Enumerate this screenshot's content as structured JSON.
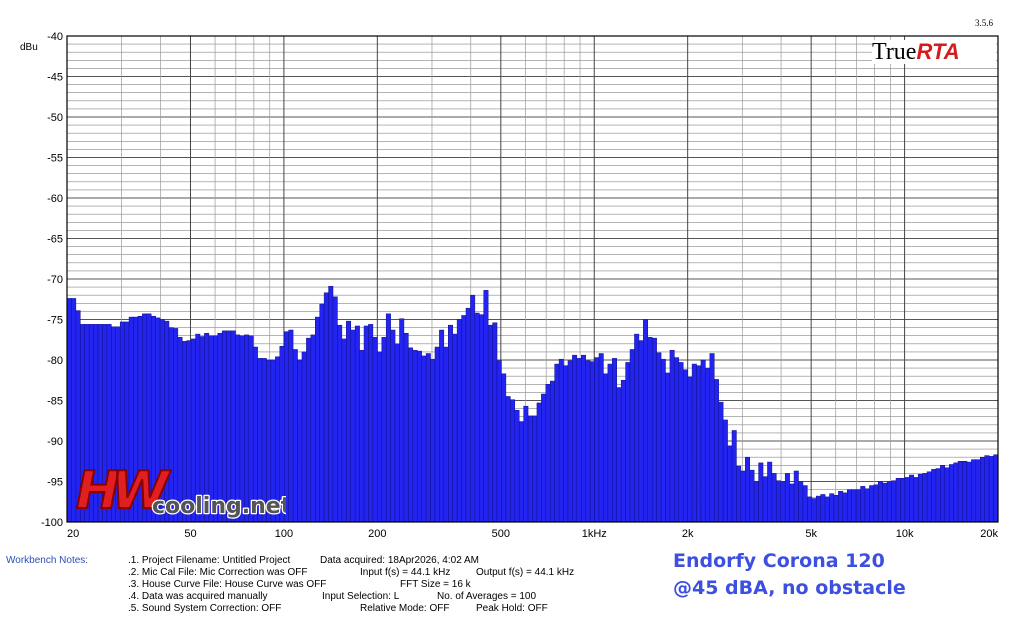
{
  "app": {
    "logo_true": "True",
    "logo_rta": "RTA",
    "version": "3.5.6"
  },
  "watermark": {
    "letters": "HW",
    "text": "cooling.net"
  },
  "caption": {
    "line1": "Endorfy Corona 120",
    "line2": "@45 dBA, no obstacle"
  },
  "notes": {
    "label": "Workbench Notes:",
    "project": ".1. Project Filename: Untitled Project",
    "data_acquired": "Data acquired: 18Apr2026, 4:02 AM",
    "mic_cal": ".2. Mic Cal File: Mic Correction was OFF",
    "input_f": "Input f(s) = 44.1 kHz",
    "output_f": "Output f(s) = 44.1 kHz",
    "house_curve": ".3. House Curve File: House Curve was OFF",
    "fft_size": "FFT Size = 16 k",
    "manual": ".4. Data was acquired manually",
    "input_sel": "Input Selection: L",
    "averages": "No. of Averages = 100",
    "system_corr": ".5. Sound System Correction: OFF",
    "relative": "Relative Mode:  OFF",
    "peak_hold": "Peak Hold: OFF"
  },
  "colors": {
    "bar_fill": "#2424f0",
    "bar_edge": "#10108a",
    "grid": "#000000",
    "caption": "#3c4fe0",
    "logo_red": "#d41c1c"
  },
  "chart_data": {
    "type": "bar",
    "ylabel": "dBu",
    "xscale": "log",
    "xlim": [
      20,
      20000
    ],
    "ylim": [
      -100,
      -40
    ],
    "x_tick_labels": [
      "20",
      "50",
      "100",
      "200",
      "500",
      "1kHz",
      "2k",
      "5k",
      "10k",
      "20k"
    ],
    "x_tick_values": [
      20,
      50,
      100,
      200,
      500,
      1000,
      2000,
      5000,
      10000,
      20000
    ],
    "y_tick_values": [
      -40,
      -45,
      -50,
      -55,
      -60,
      -65,
      -70,
      -75,
      -80,
      -85,
      -90,
      -95,
      -100
    ],
    "grid": "on",
    "bands_per_octave": 24,
    "values": [
      -72.4,
      -72.4,
      -73.9,
      -75.6,
      -75.6,
      -75.6,
      -75.6,
      -75.6,
      -75.6,
      -75.6,
      -75.9,
      -75.9,
      -75.3,
      -75.3,
      -74.7,
      -74.7,
      -74.6,
      -74.3,
      -74.3,
      -74.6,
      -74.8,
      -75.0,
      -75.2,
      -76.0,
      -76.1,
      -77.2,
      -77.7,
      -77.6,
      -77.4,
      -76.8,
      -77.1,
      -76.7,
      -77.0,
      -77.0,
      -76.7,
      -76.4,
      -76.4,
      -76.4,
      -76.9,
      -77.0,
      -76.9,
      -77.0,
      -78.4,
      -79.8,
      -79.8,
      -80.0,
      -80.0,
      -79.6,
      -78.3,
      -76.5,
      -76.3,
      -78.7,
      -80.0,
      -79.0,
      -77.3,
      -76.9,
      -74.7,
      -73.1,
      -71.7,
      -70.9,
      -72.2,
      -75.7,
      -77.4,
      -75.2,
      -76.3,
      -75.8,
      -78.8,
      -75.8,
      -75.6,
      -77.2,
      -79.0,
      -77.2,
      -74.3,
      -76.3,
      -78.0,
      -74.9,
      -76.7,
      -78.5,
      -78.8,
      -78.9,
      -79.5,
      -79.2,
      -79.9,
      -78.4,
      -76.3,
      -78.4,
      -75.7,
      -76.8,
      -75.0,
      -74.5,
      -73.6,
      -72.0,
      -74.2,
      -74.4,
      -71.4,
      -75.7,
      -75.4,
      -80.1,
      -81.7,
      -84.5,
      -84.9,
      -86.2,
      -87.6,
      -85.7,
      -86.9,
      -86.9,
      -85.3,
      -84.2,
      -83.0,
      -82.6,
      -80.5,
      -79.9,
      -80.7,
      -80.1,
      -79.4,
      -79.8,
      -79.4,
      -80.1,
      -80.2,
      -79.7,
      -79.2,
      -81.7,
      -80.5,
      -79.8,
      -83.4,
      -82.5,
      -80.3,
      -78.7,
      -76.8,
      -77.6,
      -75.0,
      -77.2,
      -77.3,
      -79.1,
      -79.9,
      -81.6,
      -78.8,
      -79.7,
      -80.3,
      -81.2,
      -82.1,
      -80.5,
      -80.7,
      -80.0,
      -81.0,
      -79.2,
      -82.4,
      -85.2,
      -87.4,
      -90.6,
      -88.7,
      -93.1,
      -93.7,
      -92.0,
      -93.6,
      -95.0,
      -92.7,
      -94.4,
      -92.6,
      -94.0,
      -94.9,
      -95.0,
      -94.0,
      -95.3,
      -93.7,
      -95.0,
      -95.5,
      -96.9,
      -97.1,
      -96.8,
      -96.6,
      -96.9,
      -96.5,
      -96.7,
      -96.2,
      -96.4,
      -96.0,
      -96.0,
      -96.0,
      -95.6,
      -95.9,
      -95.5,
      -95.4,
      -95.0,
      -95.2,
      -95.0,
      -94.9,
      -94.6,
      -94.6,
      -94.5,
      -94.2,
      -94.5,
      -94.1,
      -94.0,
      -93.8,
      -93.5,
      -93.4,
      -93.0,
      -93.3,
      -92.9,
      -92.7,
      -92.5,
      -92.5,
      -92.6,
      -92.3,
      -92.3,
      -92.0,
      -91.8,
      -91.9,
      -91.7
    ]
  }
}
